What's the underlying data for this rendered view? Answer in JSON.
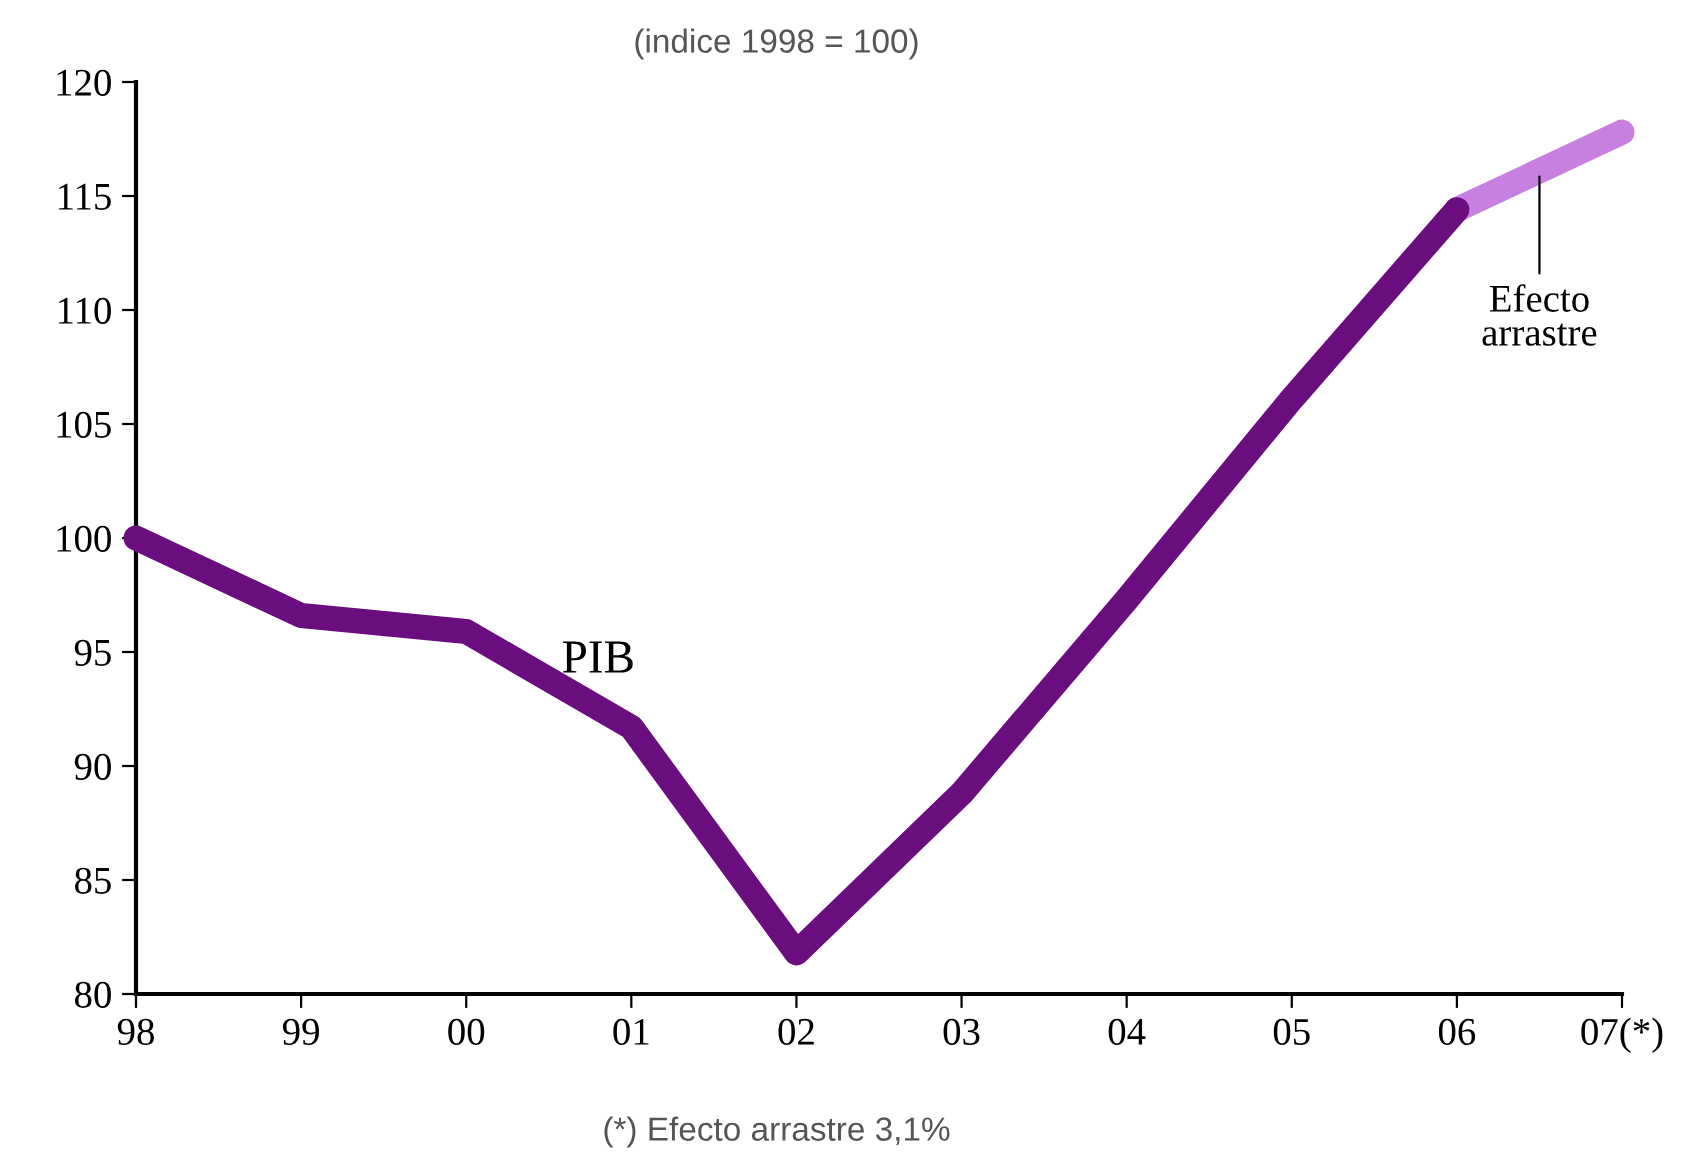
{
  "chart_data": {
    "type": "line",
    "subtitle": "(indice 1998 = 100)",
    "categories": [
      "98",
      "99",
      "00",
      "01",
      "02",
      "03",
      "04",
      "05",
      "06",
      "07(*)"
    ],
    "series": [
      {
        "name": "PIB",
        "color": "#6a0d7e",
        "values": [
          100,
          96.6,
          95.9,
          91.7,
          81.8,
          88.8,
          97.3,
          106.1,
          114.4,
          null
        ]
      },
      {
        "name": "Efecto arrastre",
        "color": "#c77fe0",
        "values": [
          null,
          null,
          null,
          null,
          null,
          null,
          null,
          null,
          114.4,
          117.8
        ]
      }
    ],
    "ylim": [
      80,
      120
    ],
    "yticks": [
      80,
      85,
      90,
      95,
      100,
      105,
      110,
      115,
      120
    ],
    "grid": false,
    "legend": false,
    "line_style": "solid",
    "annotations": [
      "(*) Efecto arrastre 3,1%"
    ]
  }
}
